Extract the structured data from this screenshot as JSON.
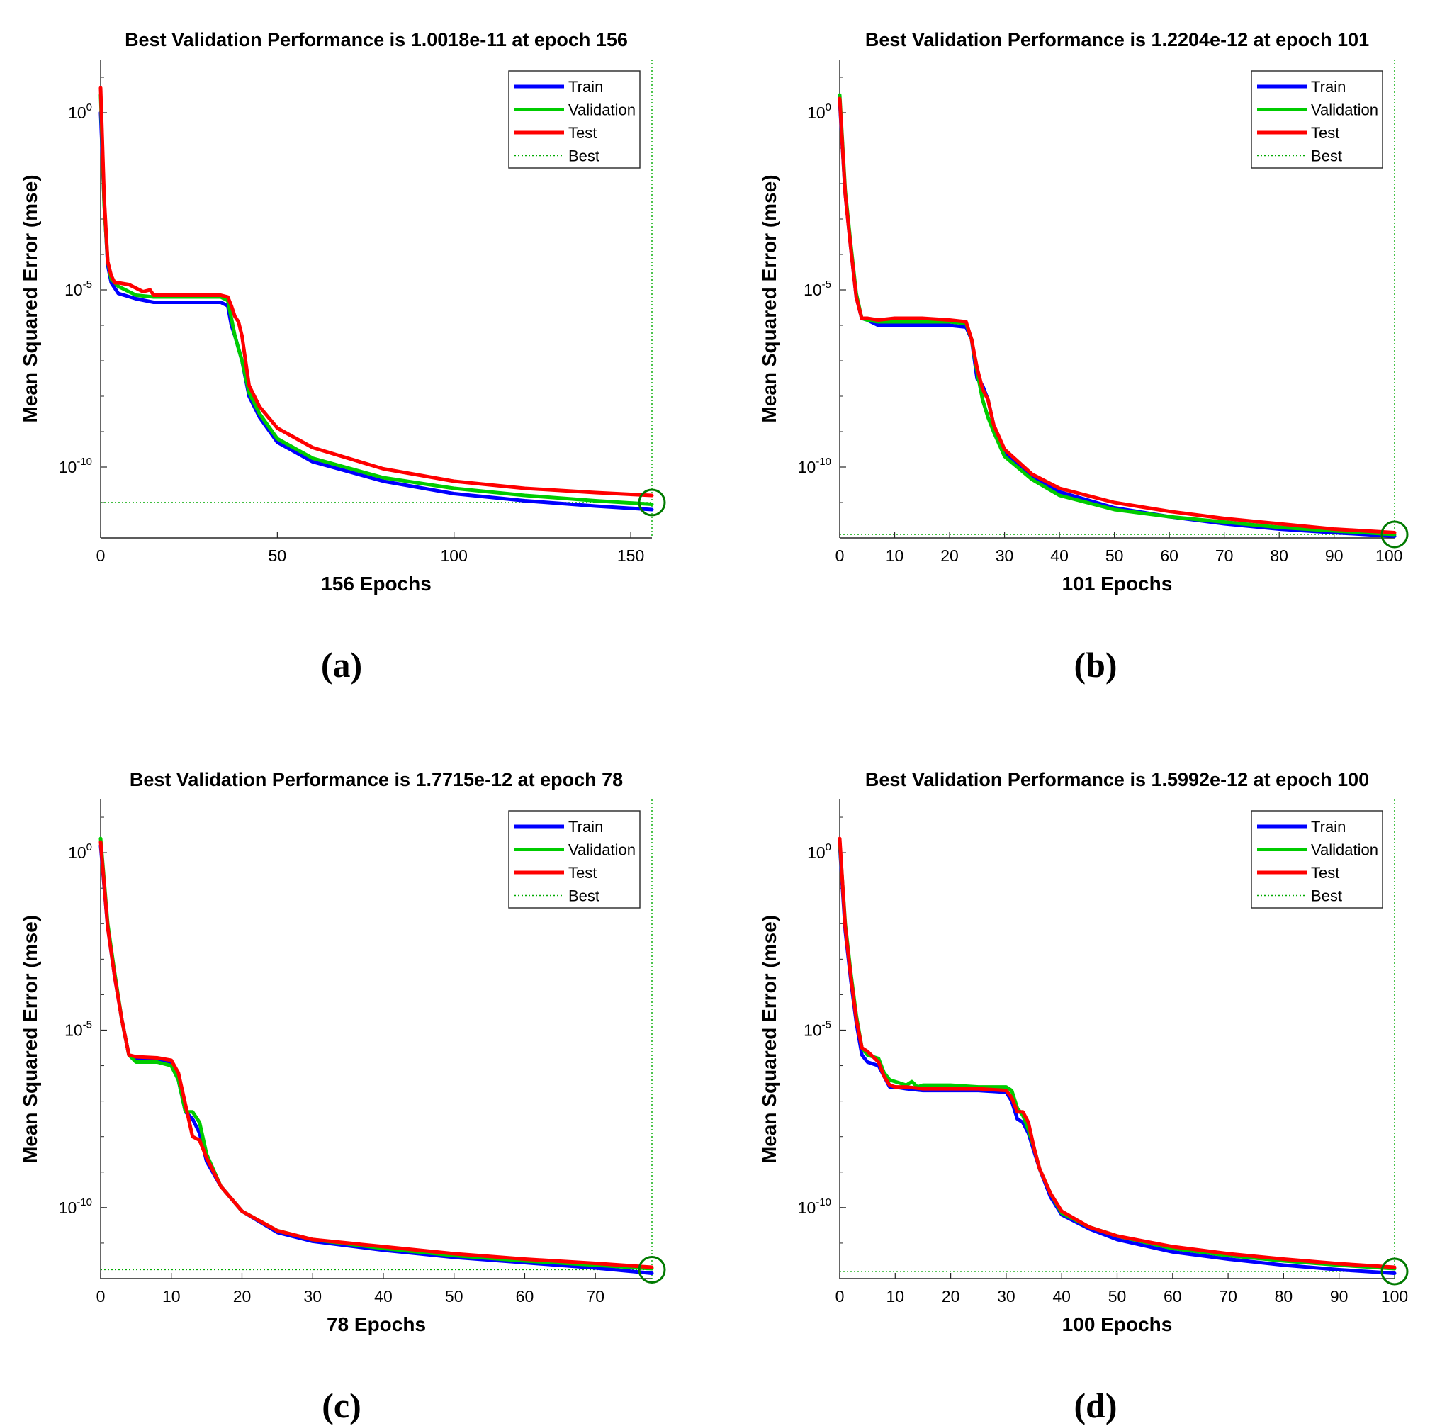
{
  "chart_data": [
    {
      "type": "line",
      "panel": "(a)",
      "title": "Best Validation Performance is 1.0018e-11 at epoch 156",
      "xlabel": "156 Epochs",
      "ylabel": "Mean Squared Error  (mse)",
      "xlim": [
        0,
        156
      ],
      "ylim_log10": [
        -12,
        1.5
      ],
      "xticks": [
        0,
        50,
        100,
        150
      ],
      "yticks": [
        {
          "base": "10",
          "exp": "0",
          "value": 0
        },
        {
          "base": "10",
          "exp": "-5",
          "value": -5
        },
        {
          "base": "10",
          "exp": "-10",
          "value": -10
        }
      ],
      "legend": [
        "Train",
        "Validation",
        "Test",
        "Best"
      ],
      "legend_position": "top-right",
      "best": {
        "epoch": 156,
        "log10_mse": -11.0
      },
      "series": [
        {
          "name": "Train",
          "color": "#0000ff",
          "x": [
            0,
            1,
            2,
            3,
            5,
            10,
            15,
            20,
            25,
            30,
            34,
            36,
            37,
            38,
            40,
            42,
            45,
            50,
            60,
            80,
            100,
            120,
            140,
            156
          ],
          "log10": [
            0.0,
            -2.5,
            -4.3,
            -4.8,
            -5.1,
            -5.25,
            -5.35,
            -5.35,
            -5.35,
            -5.35,
            -5.35,
            -5.45,
            -6.0,
            -6.3,
            -7.0,
            -8.0,
            -8.6,
            -9.3,
            -9.85,
            -10.4,
            -10.75,
            -10.95,
            -11.1,
            -11.2
          ]
        },
        {
          "name": "Validation",
          "color": "#00cc00",
          "x": [
            0,
            1,
            2,
            3,
            5,
            10,
            15,
            20,
            25,
            30,
            34,
            36,
            37,
            38,
            40,
            42,
            45,
            50,
            60,
            80,
            100,
            120,
            140,
            156
          ],
          "log10": [
            0.5,
            -2.6,
            -4.2,
            -4.7,
            -4.9,
            -5.15,
            -5.2,
            -5.2,
            -5.2,
            -5.2,
            -5.2,
            -5.3,
            -5.8,
            -6.3,
            -7.0,
            -7.9,
            -8.5,
            -9.2,
            -9.75,
            -10.3,
            -10.6,
            -10.8,
            -10.95,
            -11.05
          ]
        },
        {
          "name": "Test",
          "color": "#ff0000",
          "x": [
            0,
            1,
            2,
            3,
            4,
            5,
            8,
            10,
            12,
            14,
            15,
            20,
            25,
            30,
            34,
            36,
            37,
            38,
            39,
            40,
            42,
            45,
            50,
            60,
            80,
            100,
            120,
            140,
            156
          ],
          "log10": [
            0.7,
            -2.4,
            -4.2,
            -4.6,
            -4.8,
            -4.8,
            -4.85,
            -4.95,
            -5.05,
            -5.0,
            -5.15,
            -5.15,
            -5.15,
            -5.15,
            -5.15,
            -5.2,
            -5.45,
            -5.75,
            -5.9,
            -6.3,
            -7.7,
            -8.3,
            -8.9,
            -9.45,
            -10.05,
            -10.4,
            -10.6,
            -10.72,
            -10.8
          ]
        }
      ]
    },
    {
      "type": "line",
      "panel": "(b)",
      "title": "Best Validation Performance is 1.2204e-12 at epoch 101",
      "xlabel": "101 Epochs",
      "ylabel": "Mean Squared Error  (mse)",
      "xlim": [
        0,
        101
      ],
      "ylim_log10": [
        -12,
        1.5
      ],
      "xticks": [
        0,
        10,
        20,
        30,
        40,
        50,
        60,
        70,
        80,
        90,
        100
      ],
      "yticks": [
        {
          "base": "10",
          "exp": "0",
          "value": 0
        },
        {
          "base": "10",
          "exp": "-5",
          "value": -5
        },
        {
          "base": "10",
          "exp": "-10",
          "value": -10
        }
      ],
      "legend": [
        "Train",
        "Validation",
        "Test",
        "Best"
      ],
      "legend_position": "top-right",
      "best": {
        "epoch": 101,
        "log10_mse": -11.9
      },
      "series": [
        {
          "name": "Train",
          "color": "#0000ff",
          "x": [
            0,
            1,
            2,
            3,
            4,
            5,
            7,
            10,
            15,
            20,
            23,
            24,
            25,
            26,
            27,
            28,
            30,
            35,
            40,
            50,
            60,
            70,
            80,
            90,
            101
          ],
          "log10": [
            0.3,
            -2.3,
            -3.8,
            -5.2,
            -5.8,
            -5.85,
            -6.0,
            -6.0,
            -6.0,
            -6.0,
            -6.05,
            -6.4,
            -7.5,
            -7.7,
            -8.1,
            -8.8,
            -9.6,
            -10.3,
            -10.7,
            -11.15,
            -11.4,
            -11.6,
            -11.75,
            -11.85,
            -11.95
          ]
        },
        {
          "name": "Validation",
          "color": "#00cc00",
          "x": [
            0,
            1,
            2,
            3,
            4,
            5,
            7,
            10,
            15,
            20,
            23,
            24,
            25,
            26,
            27,
            28,
            30,
            35,
            40,
            50,
            60,
            70,
            80,
            90,
            101
          ],
          "log10": [
            0.5,
            -2.2,
            -3.7,
            -5.1,
            -5.8,
            -5.85,
            -5.9,
            -5.9,
            -5.9,
            -5.9,
            -5.95,
            -6.4,
            -7.3,
            -8.1,
            -8.6,
            -9.0,
            -9.7,
            -10.35,
            -10.8,
            -11.2,
            -11.4,
            -11.55,
            -11.7,
            -11.8,
            -11.9
          ]
        },
        {
          "name": "Test",
          "color": "#ff0000",
          "x": [
            0,
            1,
            2,
            3,
            4,
            5,
            7,
            10,
            15,
            20,
            23,
            24,
            25,
            26,
            27,
            28,
            30,
            35,
            40,
            50,
            60,
            70,
            80,
            90,
            101
          ],
          "log10": [
            0.4,
            -2.3,
            -3.8,
            -5.2,
            -5.8,
            -5.8,
            -5.85,
            -5.8,
            -5.8,
            -5.85,
            -5.9,
            -6.4,
            -7.2,
            -7.8,
            -8.1,
            -8.8,
            -9.5,
            -10.2,
            -10.6,
            -11.0,
            -11.25,
            -11.45,
            -11.6,
            -11.75,
            -11.85
          ]
        }
      ]
    },
    {
      "type": "line",
      "panel": "(c)",
      "title": "Best Validation Performance is 1.7715e-12 at epoch 78",
      "xlabel": "78 Epochs",
      "ylabel": "Mean Squared Error  (mse)",
      "xlim": [
        0,
        78
      ],
      "ylim_log10": [
        -12,
        1.5
      ],
      "xticks": [
        0,
        10,
        20,
        30,
        40,
        50,
        60,
        70
      ],
      "yticks": [
        {
          "base": "10",
          "exp": "0",
          "value": 0
        },
        {
          "base": "10",
          "exp": "-5",
          "value": -5
        },
        {
          "base": "10",
          "exp": "-10",
          "value": -10
        }
      ],
      "legend": [
        "Train",
        "Validation",
        "Test",
        "Best"
      ],
      "legend_position": "top-right",
      "best": {
        "epoch": 78,
        "log10_mse": -11.75
      },
      "series": [
        {
          "name": "Train",
          "color": "#0000ff",
          "x": [
            0,
            1,
            2,
            3,
            4,
            5,
            8,
            10,
            11,
            12,
            13,
            14,
            15,
            17,
            20,
            25,
            30,
            40,
            50,
            60,
            70,
            78
          ],
          "log10": [
            0.2,
            -2.1,
            -3.5,
            -4.7,
            -5.7,
            -5.8,
            -5.85,
            -5.95,
            -6.4,
            -7.3,
            -7.5,
            -7.9,
            -8.7,
            -9.4,
            -10.1,
            -10.7,
            -10.95,
            -11.2,
            -11.4,
            -11.55,
            -11.7,
            -11.85
          ]
        },
        {
          "name": "Validation",
          "color": "#00cc00",
          "x": [
            0,
            1,
            2,
            3,
            4,
            5,
            8,
            10,
            11,
            12,
            13,
            14,
            15,
            17,
            20,
            25,
            30,
            40,
            50,
            60,
            70,
            78
          ],
          "log10": [
            0.4,
            -2.0,
            -3.4,
            -4.7,
            -5.7,
            -5.9,
            -5.9,
            -6.0,
            -6.4,
            -7.3,
            -7.3,
            -7.6,
            -8.5,
            -9.4,
            -10.1,
            -10.65,
            -10.9,
            -11.15,
            -11.35,
            -11.5,
            -11.62,
            -11.72
          ]
        },
        {
          "name": "Test",
          "color": "#ff0000",
          "x": [
            0,
            1,
            2,
            3,
            4,
            5,
            8,
            10,
            11,
            12,
            13,
            14,
            15,
            17,
            20,
            25,
            30,
            40,
            50,
            60,
            70,
            78
          ],
          "log10": [
            0.3,
            -2.1,
            -3.5,
            -4.7,
            -5.7,
            -5.75,
            -5.78,
            -5.85,
            -6.2,
            -7.1,
            -8.0,
            -8.1,
            -8.6,
            -9.4,
            -10.1,
            -10.65,
            -10.9,
            -11.1,
            -11.3,
            -11.45,
            -11.57,
            -11.68
          ]
        }
      ]
    },
    {
      "type": "line",
      "panel": "(d)",
      "title": "Best Validation Performance is 1.5992e-12 at epoch 100",
      "xlabel": "100 Epochs",
      "ylabel": "Mean Squared Error  (mse)",
      "xlim": [
        0,
        100
      ],
      "ylim_log10": [
        -12,
        1.5
      ],
      "xticks": [
        0,
        10,
        20,
        30,
        40,
        50,
        60,
        70,
        80,
        90,
        100
      ],
      "yticks": [
        {
          "base": "10",
          "exp": "0",
          "value": 0
        },
        {
          "base": "10",
          "exp": "-5",
          "value": -5
        },
        {
          "base": "10",
          "exp": "-10",
          "value": -10
        }
      ],
      "legend": [
        "Train",
        "Validation",
        "Test",
        "Best"
      ],
      "legend_position": "top-right",
      "best": {
        "epoch": 100,
        "log10_mse": -11.8
      },
      "series": [
        {
          "name": "Train",
          "color": "#0000ff",
          "x": [
            0,
            1,
            2,
            3,
            4,
            5,
            7,
            8,
            9,
            10,
            12,
            15,
            20,
            25,
            30,
            31,
            32,
            33,
            34,
            35,
            36,
            38,
            40,
            45,
            50,
            60,
            70,
            80,
            90,
            100
          ],
          "log10": [
            0.2,
            -2.2,
            -3.6,
            -4.8,
            -5.7,
            -5.9,
            -6.0,
            -6.3,
            -6.6,
            -6.6,
            -6.65,
            -6.7,
            -6.7,
            -6.7,
            -6.75,
            -7.0,
            -7.5,
            -7.6,
            -7.9,
            -8.4,
            -8.9,
            -9.7,
            -10.2,
            -10.6,
            -10.9,
            -11.25,
            -11.45,
            -11.62,
            -11.75,
            -11.85
          ]
        },
        {
          "name": "Validation",
          "color": "#00cc00",
          "x": [
            0,
            1,
            2,
            3,
            4,
            5,
            7,
            8,
            9,
            10,
            12,
            13,
            14,
            15,
            20,
            25,
            30,
            31,
            32,
            33,
            34,
            35,
            36,
            38,
            40,
            45,
            50,
            60,
            70,
            80,
            90,
            100
          ],
          "log10": [
            0.3,
            -2.0,
            -3.4,
            -4.6,
            -5.5,
            -5.7,
            -5.8,
            -6.2,
            -6.4,
            -6.45,
            -6.55,
            -6.45,
            -6.6,
            -6.55,
            -6.55,
            -6.6,
            -6.6,
            -6.7,
            -7.2,
            -7.4,
            -7.8,
            -8.3,
            -8.9,
            -9.6,
            -10.15,
            -10.55,
            -10.8,
            -11.15,
            -11.35,
            -11.5,
            -11.62,
            -11.72
          ]
        },
        {
          "name": "Test",
          "color": "#ff0000",
          "x": [
            0,
            1,
            2,
            3,
            4,
            5,
            7,
            8,
            9,
            10,
            12,
            15,
            20,
            25,
            30,
            31,
            32,
            33,
            34,
            35,
            36,
            38,
            40,
            45,
            50,
            60,
            70,
            80,
            90,
            100
          ],
          "log10": [
            0.4,
            -2.1,
            -3.5,
            -4.7,
            -5.5,
            -5.6,
            -5.9,
            -6.3,
            -6.55,
            -6.6,
            -6.6,
            -6.65,
            -6.65,
            -6.65,
            -6.7,
            -6.9,
            -7.3,
            -7.3,
            -7.6,
            -8.3,
            -8.9,
            -9.6,
            -10.1,
            -10.55,
            -10.8,
            -11.1,
            -11.3,
            -11.45,
            -11.58,
            -11.68
          ]
        }
      ]
    }
  ]
}
